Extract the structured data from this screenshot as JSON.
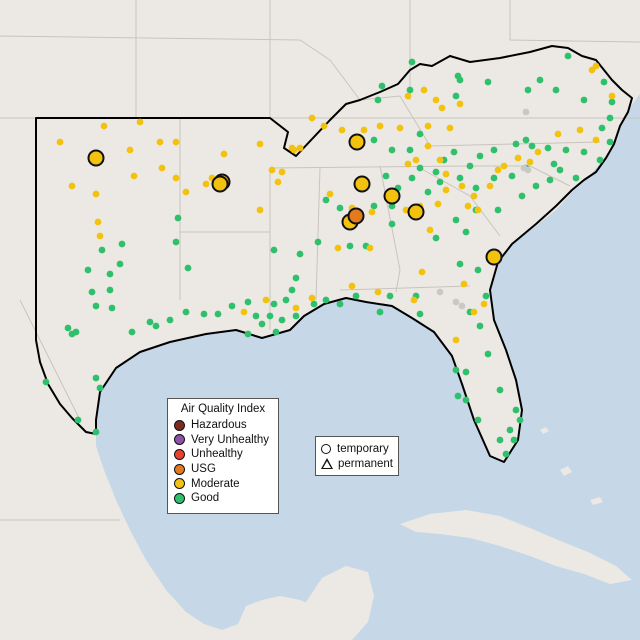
{
  "legend": {
    "title": "Air Quality Index",
    "categories": [
      {
        "label": "Hazardous",
        "color": "#7e2a22"
      },
      {
        "label": "Very Unhealthy",
        "color": "#8d52a6"
      },
      {
        "label": "Unhealthy",
        "color": "#e8422e"
      },
      {
        "label": "USG",
        "color": "#e27a20"
      },
      {
        "label": "Moderate",
        "color": "#f2c20f"
      },
      {
        "label": "Good",
        "color": "#2fc06e"
      }
    ]
  },
  "monitor_types": {
    "temporary": "temporary",
    "permanent": "permanent"
  },
  "colors": {
    "land": "#ece9e4",
    "water": "#c6d7e8",
    "state_border": "#c9c3bd",
    "region_outline": "#000000",
    "no_data": "#c8c8c8"
  }
}
